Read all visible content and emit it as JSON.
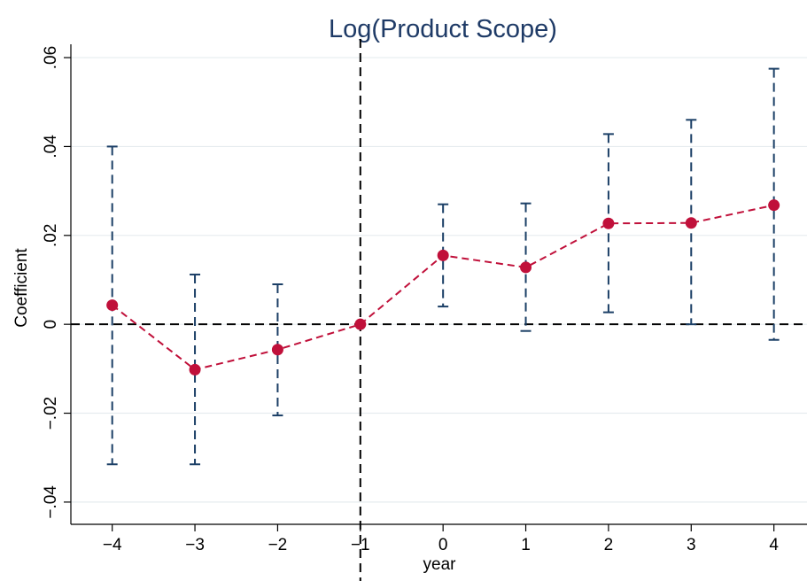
{
  "chart_data": {
    "type": "scatter",
    "title": "Log(Product Scope)",
    "xlabel": "year",
    "ylabel": "Coefficient",
    "xlim": [
      -4.5,
      4.4
    ],
    "ylim": [
      -0.045,
      0.063
    ],
    "x_ticks": [
      -4,
      -3,
      -2,
      -1,
      0,
      1,
      2,
      3,
      4
    ],
    "x_tick_labels": [
      "−4",
      "−3",
      "−2",
      "−1",
      "0",
      "1",
      "2",
      "3",
      "4"
    ],
    "y_ticks": [
      -0.04,
      -0.02,
      0,
      0.02,
      0.04,
      0.06
    ],
    "y_tick_labels": [
      "−.04",
      "−.02",
      "0",
      ".02",
      ".04",
      ".06"
    ],
    "grid": true,
    "reference_lines": {
      "x": -1,
      "y": 0
    },
    "series": [
      {
        "x": [
          -4,
          -3,
          -2,
          -1,
          0,
          1,
          2,
          3,
          4
        ],
        "y": [
          0.0043,
          -0.0102,
          -0.0057,
          0.0,
          0.0155,
          0.0128,
          0.0227,
          0.0228,
          0.0268
        ],
        "ci_low": [
          -0.0315,
          -0.0315,
          -0.0205,
          0.0,
          0.004,
          -0.0015,
          0.0027,
          0.0,
          -0.0035
        ],
        "ci_high": [
          0.04,
          0.0112,
          0.009,
          0.0,
          0.027,
          0.0272,
          0.0428,
          0.046,
          0.0575
        ]
      }
    ],
    "colors": {
      "point": "#c0103a",
      "line": "#c0103a",
      "ci": "#1b3f66",
      "grid": "#e6ecef",
      "reference": "#000000",
      "title": "#1e3a66"
    }
  }
}
